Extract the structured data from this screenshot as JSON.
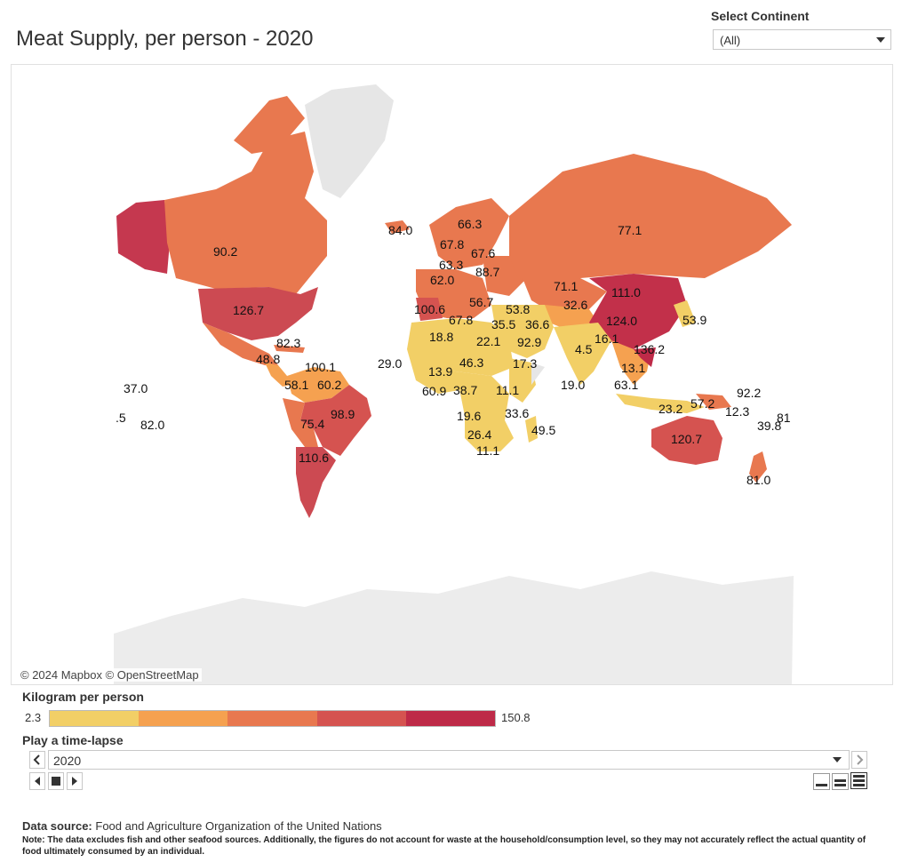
{
  "title": "Meat Supply, per person - 2020",
  "filter": {
    "label": "Select Continent",
    "value": "(All)"
  },
  "map": {
    "attribution": "© 2024 Mapbox © OpenStreetMap",
    "no_data_color": "#e6e6e6",
    "labels": [
      {
        "country": "Canada",
        "value": "90.2"
      },
      {
        "country": "United States",
        "value": "126.7"
      },
      {
        "country": "Cuba",
        "value": "82.3"
      },
      {
        "country": "Guatemala",
        "value": "48.8"
      },
      {
        "country": "Venezuela",
        "value": "100.1"
      },
      {
        "country": "Colombia",
        "value": "58.1"
      },
      {
        "country": "Guyana",
        "value": "60.2"
      },
      {
        "country": "Brazil",
        "value": "98.9"
      },
      {
        "country": "Bolivia",
        "value": "75.4"
      },
      {
        "country": "Argentina",
        "value": "110.6"
      },
      {
        "country": "Kiribati",
        "value": "37.0"
      },
      {
        "country": "French Polynesia",
        "value": "82.0"
      },
      {
        "country": "Samoa",
        "value": ".5"
      },
      {
        "country": "Iceland",
        "value": "84.0"
      },
      {
        "country": "Norway",
        "value": "66.3"
      },
      {
        "country": "Sweden",
        "value": "67.8"
      },
      {
        "country": "Finland",
        "value": "67.6"
      },
      {
        "country": "Denmark",
        "value": "63.3"
      },
      {
        "country": "Belarus",
        "value": "88.7"
      },
      {
        "country": "France",
        "value": "62.0"
      },
      {
        "country": "Spain",
        "value": "100.6"
      },
      {
        "country": "Greece",
        "value": "56.7"
      },
      {
        "country": "Algeria",
        "value": "67.8"
      },
      {
        "country": "Turkey",
        "value": "53.8"
      },
      {
        "country": "Egypt",
        "value": "35.5"
      },
      {
        "country": "Iran",
        "value": "36.6"
      },
      {
        "country": "Kazakhstan",
        "value": "71.1"
      },
      {
        "country": "Uzbekistan",
        "value": "32.6"
      },
      {
        "country": "Mongolia",
        "value": "111.0"
      },
      {
        "country": "Russia",
        "value": "77.1"
      },
      {
        "country": "China",
        "value": "124.0"
      },
      {
        "country": "Japan",
        "value": "53.9"
      },
      {
        "country": "Myanmar",
        "value": "16.1"
      },
      {
        "country": "Vietnam",
        "value": "136.2"
      },
      {
        "country": "India",
        "value": "4.5"
      },
      {
        "country": "Pakistan",
        "value": "92.9"
      },
      {
        "country": "Saudi Arabia",
        "value": "22.1"
      },
      {
        "country": "Yemen",
        "value": "17.3"
      },
      {
        "country": "Sri Lanka",
        "value": "19.0"
      },
      {
        "country": "Thailand",
        "value": "13.1"
      },
      {
        "country": "Malaysia",
        "value": "63.1"
      },
      {
        "country": "Indonesia",
        "value": "23.2"
      },
      {
        "country": "Papua New Guinea",
        "value": "57.2"
      },
      {
        "country": "Solomon Islands",
        "value": "12.3"
      },
      {
        "country": "Marshall Islands",
        "value": "92.2"
      },
      {
        "country": "Vanuatu",
        "value": "39.8"
      },
      {
        "country": "Fiji",
        "value": "81"
      },
      {
        "country": "Australia",
        "value": "120.7"
      },
      {
        "country": "New Zealand",
        "value": "81.0"
      },
      {
        "country": "Mauritania",
        "value": "29.0"
      },
      {
        "country": "Mali",
        "value": "18.8"
      },
      {
        "country": "Nigeria",
        "value": "13.9"
      },
      {
        "country": "Chad",
        "value": "46.3"
      },
      {
        "country": "Ghana",
        "value": "60.9"
      },
      {
        "country": "Congo",
        "value": "38.7"
      },
      {
        "country": "Tanzania",
        "value": "11.1"
      },
      {
        "country": "Zambia",
        "value": "19.6"
      },
      {
        "country": "Mozambique",
        "value": "33.6"
      },
      {
        "country": "Madagascar",
        "value": "49.5"
      },
      {
        "country": "Botswana",
        "value": "26.4"
      },
      {
        "country": "Lesotho",
        "value": "11.1"
      }
    ]
  },
  "legend": {
    "title": "Kilogram per person",
    "min": "2.3",
    "max": "150.8",
    "colors": [
      "#f2cf66",
      "#f5a150",
      "#e8784f",
      "#d55350",
      "#be2a48"
    ]
  },
  "timelapse": {
    "title": "Play a time-lapse",
    "value": "2020"
  },
  "footer": {
    "source_label": "Data source:",
    "source_text": "Food and Agriculture Organization of the United Nations",
    "note_label": "Note:",
    "note_text": "The data excludes fish and other seafood sources. Additionally, the figures do not account for waste at the household/consumption level, so they may not accurately reflect the actual quantity of food ultimately consumed by an individual."
  }
}
